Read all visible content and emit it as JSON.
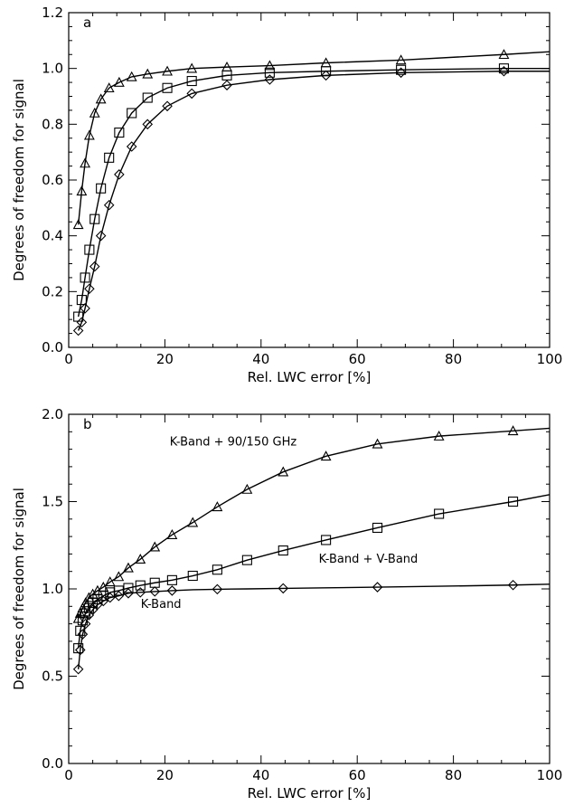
{
  "chart_data": [
    {
      "type": "line",
      "panel_label": "a",
      "xlabel": "Rel. LWC error [%]",
      "ylabel": "Degrees of freedom for signal",
      "xlim": [
        0,
        100
      ],
      "ylim": [
        0.0,
        1.2
      ],
      "xticks": [
        0,
        20,
        40,
        60,
        80,
        100
      ],
      "yticks": [
        0.0,
        0.2,
        0.4,
        0.6,
        0.8,
        1.0,
        1.2
      ],
      "ytick_labels": [
        "0.0",
        "0.2",
        "0.4",
        "0.6",
        "0.8",
        "1.0",
        "1.2"
      ],
      "grid": false,
      "series": [
        {
          "marker": "triangle",
          "x": [
            2.0,
            2.7,
            3.4,
            4.3,
            5.4,
            6.7,
            8.4,
            10.5,
            13.1,
            16.4,
            20.5,
            25.6,
            32.9,
            41.8,
            53.5,
            69.1,
            90.5,
            100
          ],
          "y": [
            0.44,
            0.56,
            0.66,
            0.76,
            0.84,
            0.89,
            0.93,
            0.95,
            0.97,
            0.98,
            0.99,
            1.0,
            1.005,
            1.01,
            1.02,
            1.03,
            1.05,
            1.06
          ],
          "marker_count": 17
        },
        {
          "marker": "square",
          "x": [
            2.0,
            2.7,
            3.4,
            4.3,
            5.4,
            6.7,
            8.4,
            10.5,
            13.1,
            16.4,
            20.5,
            25.6,
            32.9,
            41.8,
            53.5,
            69.1,
            90.5,
            100
          ],
          "y": [
            0.11,
            0.17,
            0.25,
            0.35,
            0.46,
            0.57,
            0.68,
            0.77,
            0.84,
            0.895,
            0.93,
            0.955,
            0.975,
            0.985,
            0.99,
            0.995,
            1.0,
            1.0
          ],
          "marker_count": 17
        },
        {
          "marker": "diamond",
          "x": [
            2.0,
            2.7,
            3.4,
            4.3,
            5.4,
            6.7,
            8.4,
            10.5,
            13.1,
            16.4,
            20.5,
            25.6,
            32.9,
            41.8,
            53.5,
            69.1,
            90.5,
            100
          ],
          "y": [
            0.06,
            0.09,
            0.14,
            0.21,
            0.29,
            0.4,
            0.51,
            0.62,
            0.72,
            0.8,
            0.865,
            0.91,
            0.94,
            0.96,
            0.975,
            0.985,
            0.99,
            0.99
          ],
          "marker_count": 17
        }
      ]
    },
    {
      "type": "line",
      "panel_label": "b",
      "xlabel": "Rel. LWC error [%]",
      "ylabel": "Degrees of freedom for signal",
      "xlim": [
        0,
        100
      ],
      "ylim": [
        0.0,
        2.0
      ],
      "xticks": [
        0,
        20,
        40,
        60,
        80,
        100
      ],
      "yticks": [
        0.0,
        0.5,
        1.0,
        1.5,
        2.0
      ],
      "ytick_labels": [
        "0.0",
        "0.5",
        "1.0",
        "1.5",
        "2.0"
      ],
      "grid": false,
      "series": [
        {
          "name": "K-Band + 90/150 GHz",
          "label_at": [
            21,
            1.82
          ],
          "marker": "triangle",
          "x": [
            2.0,
            2.4,
            2.9,
            3.5,
            4.2,
            5.0,
            6.0,
            7.2,
            8.6,
            10.4,
            12.4,
            14.9,
            17.9,
            21.5,
            25.8,
            30.9,
            37.1,
            44.6,
            53.5,
            64.2,
            77.0,
            92.4,
            100
          ],
          "y": [
            0.83,
            0.86,
            0.89,
            0.92,
            0.95,
            0.97,
            0.99,
            1.01,
            1.04,
            1.07,
            1.12,
            1.17,
            1.24,
            1.31,
            1.38,
            1.47,
            1.57,
            1.67,
            1.76,
            1.83,
            1.875,
            1.905,
            1.92
          ],
          "marker_idx": [
            0,
            1,
            2,
            3,
            4,
            5,
            6,
            7,
            8,
            9,
            10,
            11,
            12,
            13,
            14,
            15,
            16,
            17,
            18,
            19,
            20,
            21
          ]
        },
        {
          "name": "K-Band + V-Band",
          "label_at": [
            52,
            1.15
          ],
          "marker": "square",
          "x": [
            2.0,
            2.4,
            2.9,
            3.5,
            4.2,
            5.0,
            6.0,
            7.2,
            8.6,
            10.4,
            12.4,
            14.9,
            17.9,
            21.5,
            25.8,
            30.9,
            37.1,
            44.6,
            53.5,
            64.2,
            77.0,
            92.4,
            100
          ],
          "y": [
            0.66,
            0.76,
            0.82,
            0.86,
            0.89,
            0.92,
            0.94,
            0.96,
            0.98,
            0.99,
            1.005,
            1.02,
            1.035,
            1.05,
            1.075,
            1.11,
            1.165,
            1.22,
            1.28,
            1.35,
            1.43,
            1.5,
            1.54
          ],
          "marker_idx": [
            0,
            1,
            2,
            3,
            4,
            5,
            6,
            7,
            8,
            9,
            10,
            11,
            12,
            13,
            14,
            15,
            16,
            17,
            18,
            19,
            20,
            21
          ]
        },
        {
          "name": "K-Band",
          "label_at": [
            15,
            0.89
          ],
          "marker": "diamond",
          "x": [
            2.0,
            2.4,
            2.9,
            3.5,
            4.2,
            5.0,
            6.0,
            7.2,
            8.6,
            10.4,
            12.4,
            14.9,
            17.9,
            21.5,
            25.8,
            30.9,
            37.1,
            44.6,
            53.5,
            64.2,
            77.0,
            92.4,
            100
          ],
          "y": [
            0.54,
            0.65,
            0.74,
            0.8,
            0.85,
            0.88,
            0.91,
            0.93,
            0.95,
            0.96,
            0.975,
            0.98,
            0.985,
            0.99,
            0.995,
            0.998,
            1.0,
            1.003,
            1.006,
            1.01,
            1.015,
            1.022,
            1.027
          ],
          "marker_idx": [
            0,
            1,
            2,
            3,
            4,
            5,
            6,
            7,
            8,
            9,
            10,
            11,
            12,
            13,
            15,
            17,
            19,
            21
          ]
        }
      ]
    }
  ]
}
